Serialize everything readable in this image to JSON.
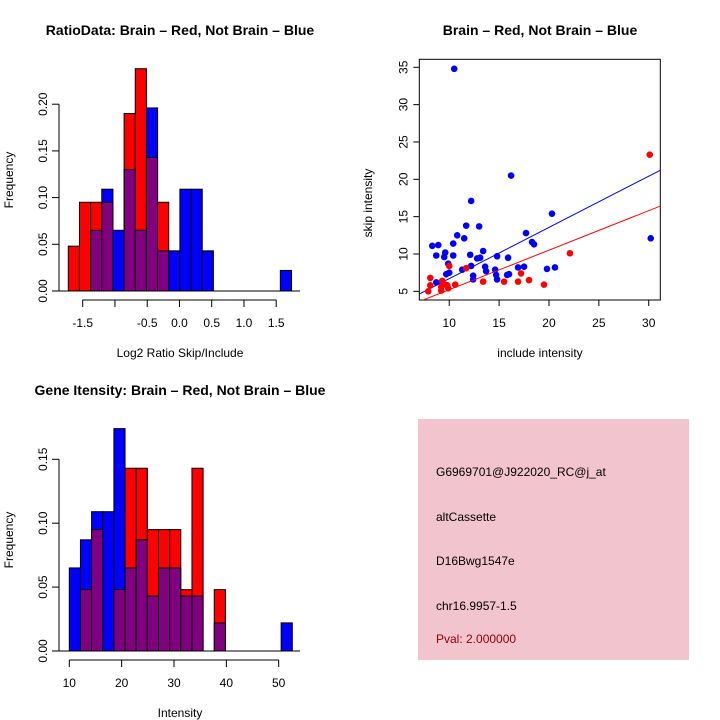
{
  "colors": {
    "red": "#ff0000",
    "blue": "#0000ff",
    "purple": "#800080",
    "pval": "#8b0000",
    "box": "#f2c4ce"
  },
  "chart_data": [
    {
      "type": "bar",
      "title": "RatioData: Brain – Red, Not Brain – Blue",
      "xlabel": "Log2 Ratio Skip/Include",
      "ylabel": "Frequency",
      "bin_start": -1.723,
      "bin_width": 0.173,
      "xlim": [
        -1.723,
        1.74
      ],
      "ylim": [
        0,
        0.24
      ],
      "xticks": [
        -1.5,
        -1.0,
        -0.5,
        0.0,
        0.5,
        1.0,
        1.5
      ],
      "xtick_labels": [
        "-1.5",
        "",
        "-0.5",
        "0.0",
        "0.5",
        "1.0",
        "1.5"
      ],
      "yticks": [
        0,
        0.05,
        0.1,
        0.15,
        0.2
      ],
      "ytick_labels": [
        "0.00",
        "0.05",
        "0.10",
        "0.15",
        "0.20"
      ],
      "series": [
        {
          "name": "Brain",
          "color": "red",
          "values": [
            0.048,
            0.095,
            0.095,
            0.095,
            0,
            0.19,
            0.238,
            0.143,
            0.095,
            0,
            0,
            0,
            0,
            0,
            0,
            0,
            0,
            0,
            0,
            0
          ]
        },
        {
          "name": "Not Brain",
          "color": "blue",
          "values": [
            0,
            0,
            0.065,
            0.109,
            0.065,
            0.13,
            0.065,
            0.196,
            0.043,
            0.043,
            0.109,
            0.109,
            0.043,
            0,
            0,
            0,
            0,
            0,
            0,
            0.022
          ]
        }
      ]
    },
    {
      "type": "scatter",
      "title": "Brain – Red, Not Brain – Blue",
      "xlabel": "include intensity",
      "ylabel": "skip intensity",
      "xlim": [
        7.0,
        31.16
      ],
      "ylim": [
        3.84,
        36.07
      ],
      "xticks": [
        10,
        15,
        20,
        25,
        30
      ],
      "xtick_labels": [
        "10",
        "15",
        "20",
        "25",
        "30"
      ],
      "yticks": [
        5,
        10,
        15,
        20,
        25,
        30,
        35
      ],
      "ytick_labels": [
        "5",
        "10",
        "15",
        "20",
        "25",
        "30",
        "35"
      ],
      "series": [
        {
          "name": "Not Brain",
          "color": "blue",
          "fit": {
            "slope": 0.686,
            "intercept": -0.16
          },
          "points": [
            [
              10.5,
              34.8
            ],
            [
              16.2,
              20.5
            ],
            [
              12.2,
              17.1
            ],
            [
              20.3,
              15.4
            ],
            [
              11.7,
              13.8
            ],
            [
              13.0,
              13.7
            ],
            [
              10.8,
              12.5
            ],
            [
              17.7,
              12.8
            ],
            [
              11.5,
              12.1
            ],
            [
              30.2,
              12.1
            ],
            [
              10.4,
              11.4
            ],
            [
              8.3,
              11.1
            ],
            [
              8.9,
              11.2
            ],
            [
              18.3,
              11.6
            ],
            [
              18.5,
              11.3
            ],
            [
              9.6,
              10.2
            ],
            [
              13.4,
              10.4
            ],
            [
              8.7,
              9.8
            ],
            [
              9.5,
              9.6
            ],
            [
              10.4,
              9.8
            ],
            [
              12.1,
              9.9
            ],
            [
              12.8,
              9.4
            ],
            [
              13.1,
              9.5
            ],
            [
              14.8,
              9.7
            ],
            [
              15.9,
              9.5
            ],
            [
              9.9,
              8.7
            ],
            [
              12.2,
              8.4
            ],
            [
              13.6,
              8.3
            ],
            [
              13.7,
              7.7
            ],
            [
              11.3,
              7.9
            ],
            [
              10.0,
              7.5
            ],
            [
              9.7,
              7.3
            ],
            [
              14.6,
              7.9
            ],
            [
              16.9,
              8.2
            ],
            [
              17.5,
              8.3
            ],
            [
              19.8,
              8.0
            ],
            [
              20.6,
              8.2
            ],
            [
              12.4,
              7.1
            ],
            [
              12.4,
              6.6
            ],
            [
              14.7,
              7.2
            ],
            [
              14.8,
              6.6
            ],
            [
              15.8,
              7.2
            ],
            [
              16.0,
              7.3
            ],
            [
              8.7,
              6.2
            ]
          ]
        },
        {
          "name": "Brain",
          "color": "red",
          "fit": {
            "slope": 0.529,
            "intercept": -0.07
          },
          "points": [
            [
              30.1,
              23.3
            ],
            [
              22.1,
              10.1
            ],
            [
              10.0,
              8.4
            ],
            [
              11.7,
              8.1
            ],
            [
              8.1,
              6.8
            ],
            [
              17.2,
              7.4
            ],
            [
              18.0,
              6.5
            ],
            [
              16.9,
              6.3
            ],
            [
              15.5,
              6.3
            ],
            [
              13.4,
              6.3
            ],
            [
              19.5,
              5.9
            ],
            [
              10.6,
              5.9
            ],
            [
              8.1,
              5.8
            ],
            [
              9.3,
              6.4
            ],
            [
              9.2,
              5.6
            ],
            [
              9.8,
              5.8
            ],
            [
              9.9,
              5.4
            ],
            [
              9.2,
              5.1
            ],
            [
              7.9,
              5.0
            ],
            [
              9.6,
              5.9
            ]
          ]
        }
      ]
    },
    {
      "type": "bar",
      "title": "Gene Itensity: Brain – Red, Not Brain – Blue",
      "xlabel": "Intensity",
      "ylabel": "Frequency",
      "bin_start": 10.0,
      "bin_width": 2.13,
      "xlim": [
        10.0,
        52.6
      ],
      "ylim": [
        0,
        0.174
      ],
      "xticks": [
        10,
        20,
        30,
        40,
        50
      ],
      "xtick_labels": [
        "10",
        "20",
        "30",
        "40",
        "50"
      ],
      "yticks": [
        0,
        0.05,
        0.1,
        0.15
      ],
      "ytick_labels": [
        "0.00",
        "0.05",
        "0.10",
        "0.15"
      ],
      "series": [
        {
          "name": "Brain",
          "color": "red",
          "values": [
            0,
            0.048,
            0.095,
            0,
            0.048,
            0.143,
            0.143,
            0.095,
            0.095,
            0.095,
            0.048,
            0.143,
            0,
            0.048,
            0,
            0,
            0,
            0,
            0,
            0
          ]
        },
        {
          "name": "Not Brain",
          "color": "blue",
          "values": [
            0.065,
            0.087,
            0.109,
            0.109,
            0.174,
            0.065,
            0.087,
            0.043,
            0.065,
            0.065,
            0.043,
            0.043,
            0,
            0.022,
            0,
            0,
            0,
            0,
            0,
            0.022
          ]
        }
      ]
    }
  ],
  "info_box": {
    "probe_id": "G6969701@J922020_RC@j_at",
    "event_type": "altCassette",
    "gene": "D16Bwg1547e",
    "location": "chr16.9957-1.5",
    "pval": "Pval: 2.000000"
  }
}
